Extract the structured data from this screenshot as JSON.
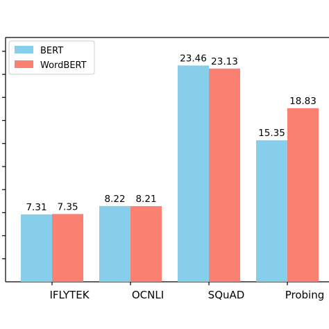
{
  "chart_data": {
    "type": "bar",
    "categories": [
      "IFLYTEK",
      "OCNLI",
      "SQuAD",
      "Probing"
    ],
    "series": [
      {
        "name": "BERT",
        "color": "#87CEEB",
        "values": [
          7.31,
          8.22,
          23.46,
          15.35
        ],
        "labels": [
          "7.31",
          "8.22",
          "23.46",
          "15.35"
        ]
      },
      {
        "name": "WordBERT",
        "color": "#FA8072",
        "values": [
          7.35,
          8.21,
          23.13,
          18.83
        ],
        "labels": [
          "7.35",
          "8.21",
          "23.13",
          "18.83"
        ]
      }
    ],
    "ylim": [
      0,
      26.5
    ],
    "legend_position": "top-left",
    "grid": false
  }
}
